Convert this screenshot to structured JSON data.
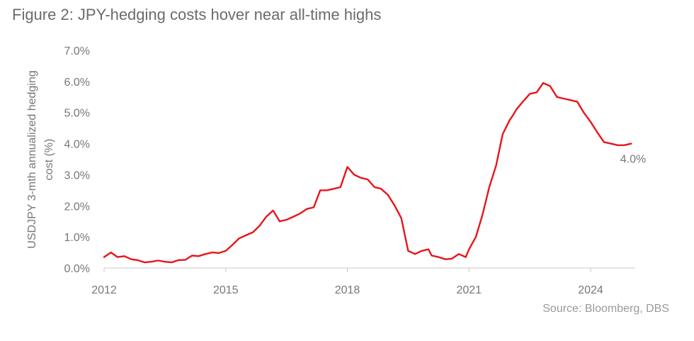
{
  "chart_data": {
    "type": "line",
    "title": "Figure 2:  JPY-hedging costs hover near all-time highs",
    "ylabel_line1": "USDJPY 3-mth annualized hedging",
    "ylabel_line2": "cost (%)",
    "xlabel": "",
    "source": "Source: Bloomberg, DBS",
    "ylim": [
      0,
      7
    ],
    "yticks": [
      0,
      1,
      2,
      3,
      4,
      5,
      6,
      7
    ],
    "ytick_labels": [
      "0.0%",
      "1.0%",
      "2.0%",
      "3.0%",
      "4.0%",
      "5.0%",
      "6.0%",
      "7.0%"
    ],
    "xlim": [
      2012,
      2025.1
    ],
    "xticks": [
      2012,
      2015,
      2018,
      2021,
      2024
    ],
    "xtick_labels": [
      "2012",
      "2015",
      "2018",
      "2021",
      "2024"
    ],
    "grid": false,
    "line_color": "#e8141a",
    "end_label": "4.0%",
    "series": [
      {
        "name": "",
        "x": [
          2012.0,
          2012.17,
          2012.33,
          2012.5,
          2012.67,
          2012.83,
          2013.0,
          2013.17,
          2013.33,
          2013.5,
          2013.67,
          2013.83,
          2014.0,
          2014.17,
          2014.33,
          2014.5,
          2014.67,
          2014.83,
          2015.0,
          2015.17,
          2015.33,
          2015.5,
          2015.67,
          2015.83,
          2016.0,
          2016.17,
          2016.33,
          2016.5,
          2016.67,
          2016.83,
          2017.0,
          2017.17,
          2017.33,
          2017.5,
          2017.67,
          2017.83,
          2018.0,
          2018.17,
          2018.33,
          2018.5,
          2018.67,
          2018.83,
          2019.0,
          2019.17,
          2019.33,
          2019.5,
          2019.67,
          2019.83,
          2020.0,
          2020.08,
          2020.25,
          2020.42,
          2020.58,
          2020.75,
          2020.92,
          2021.0,
          2021.17,
          2021.33,
          2021.5,
          2021.67,
          2021.83,
          2022.0,
          2022.08,
          2022.17,
          2022.33,
          2022.5,
          2022.67,
          2022.83,
          2023.0,
          2023.17,
          2023.33,
          2023.5,
          2023.67,
          2023.83,
          2024.0,
          2024.17,
          2024.33,
          2024.5,
          2024.67,
          2024.83,
          2025.0
        ],
        "values": [
          0.35,
          0.5,
          0.35,
          0.38,
          0.28,
          0.25,
          0.18,
          0.2,
          0.24,
          0.2,
          0.18,
          0.25,
          0.26,
          0.4,
          0.38,
          0.45,
          0.5,
          0.48,
          0.55,
          0.75,
          0.95,
          1.05,
          1.15,
          1.35,
          1.65,
          1.85,
          1.5,
          1.55,
          1.65,
          1.75,
          1.9,
          1.95,
          2.5,
          2.5,
          2.55,
          2.6,
          3.25,
          3.0,
          2.9,
          2.85,
          2.6,
          2.55,
          2.35,
          2.0,
          1.6,
          0.55,
          0.45,
          0.55,
          0.6,
          0.4,
          0.35,
          0.28,
          0.3,
          0.45,
          0.35,
          0.6,
          1.0,
          1.7,
          2.6,
          3.3,
          4.3,
          4.75,
          4.9,
          5.1,
          5.35,
          5.6,
          5.65,
          5.95,
          5.85,
          5.5,
          5.45,
          5.4,
          5.35,
          5.0,
          4.7,
          4.35,
          4.05,
          4.0,
          3.95,
          3.95,
          4.0
        ]
      }
    ]
  }
}
